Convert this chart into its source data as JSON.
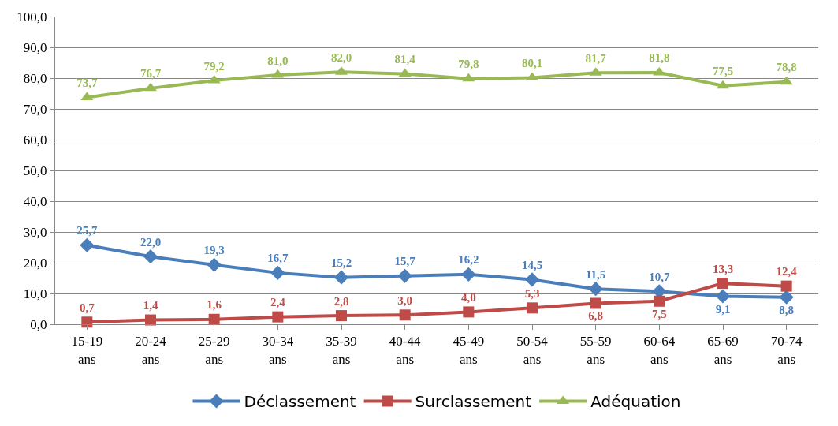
{
  "chart_data": {
    "type": "line",
    "categories": [
      "15-19 ans",
      "20-24 ans",
      "25-29 ans",
      "30-34 ans",
      "35-39 ans",
      "40-44 ans",
      "45-49 ans",
      "50-54 ans",
      "55-59 ans",
      "60-64 ans",
      "65-69 ans",
      "70-74 ans"
    ],
    "ylim": [
      0,
      100
    ],
    "yticks": [
      {
        "value": 0,
        "label": "0,0"
      },
      {
        "value": 10,
        "label": "10,0"
      },
      {
        "value": 20,
        "label": "20,0"
      },
      {
        "value": 30,
        "label": "30,0"
      },
      {
        "value": 40,
        "label": "40,0"
      },
      {
        "value": 50,
        "label": "50,0"
      },
      {
        "value": 60,
        "label": "60,0"
      },
      {
        "value": 70,
        "label": "70,0"
      },
      {
        "value": 80,
        "label": "80,0"
      },
      {
        "value": 90,
        "label": "90,0"
      },
      {
        "value": 100,
        "label": "100,0"
      }
    ],
    "grid": "y",
    "legend": "bottom",
    "line_style": "solid",
    "series": [
      {
        "name": "Déclassement",
        "color": "#4a7ebb",
        "marker": "diamond",
        "values": [
          25.7,
          22.0,
          19.3,
          16.7,
          15.2,
          15.7,
          16.2,
          14.5,
          11.5,
          10.7,
          9.1,
          8.8
        ],
        "value_labels": [
          "25,7",
          "22,0",
          "19,3",
          "16,7",
          "15,2",
          "15,7",
          "16,2",
          "14,5",
          "11,5",
          "10,7",
          "9,1",
          "8,8"
        ]
      },
      {
        "name": "Surclassement",
        "color": "#be4b48",
        "marker": "square",
        "values": [
          0.7,
          1.4,
          1.6,
          2.4,
          2.8,
          3.0,
          4.0,
          5.3,
          6.8,
          7.5,
          13.3,
          12.4
        ],
        "value_labels": [
          "0,7",
          "1,4",
          "1,6",
          "2,4",
          "2,8",
          "3,0",
          "4,0",
          "5,3",
          "6,8",
          "7,5",
          "13,3",
          "12,4"
        ]
      },
      {
        "name": "Adéquation",
        "color": "#98b954",
        "marker": "triangle",
        "values": [
          73.7,
          76.7,
          79.2,
          81.0,
          82.0,
          81.4,
          79.8,
          80.1,
          81.7,
          81.8,
          77.5,
          78.8
        ],
        "value_labels": [
          "73,7",
          "76,7",
          "79,2",
          "81,0",
          "82,0",
          "81,4",
          "79,8",
          "80,1",
          "81,7",
          "81,8",
          "77,5",
          "78,8"
        ]
      }
    ]
  }
}
